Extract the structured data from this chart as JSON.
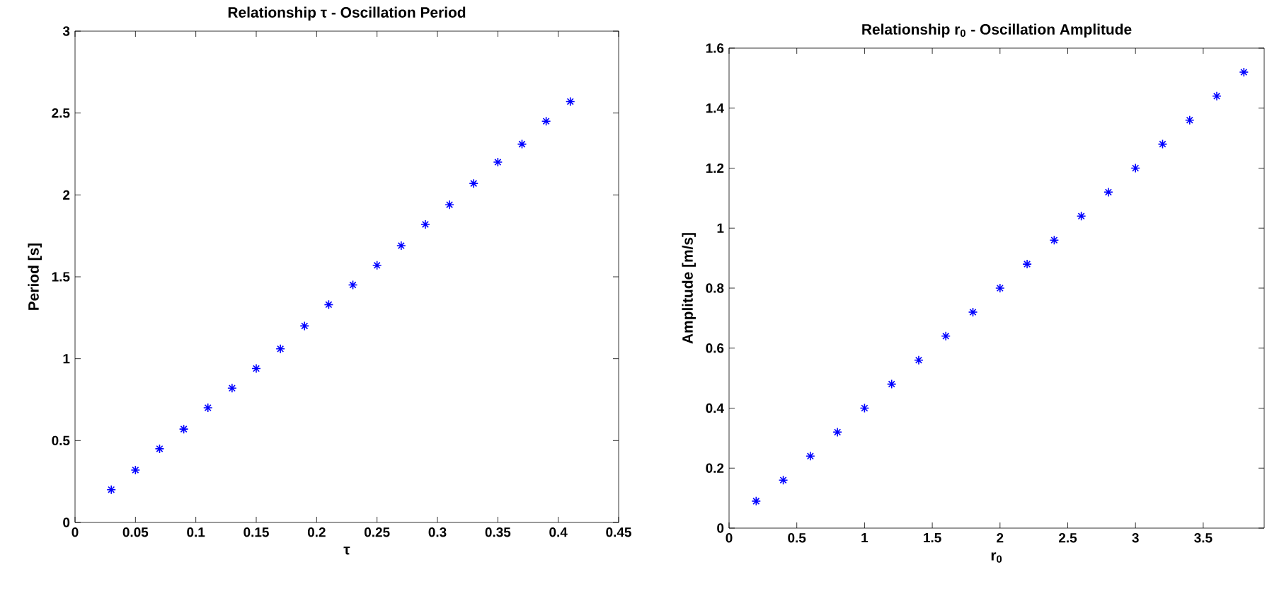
{
  "chart_data": [
    {
      "type": "scatter",
      "title": "Relationship τ - Oscillation Period",
      "xlabel": "τ",
      "ylabel": "Period [s]",
      "marker": "cross",
      "x": [
        0.03,
        0.05,
        0.07,
        0.09,
        0.11,
        0.13,
        0.15,
        0.17,
        0.19,
        0.21,
        0.23,
        0.25,
        0.27,
        0.29,
        0.31,
        0.33,
        0.35,
        0.37,
        0.39,
        0.41
      ],
      "series": [
        {
          "color": "#0000ff",
          "values": [
            0.2,
            0.32,
            0.45,
            0.57,
            0.7,
            0.82,
            0.94,
            1.06,
            1.2,
            1.33,
            1.45,
            1.57,
            1.69,
            1.82,
            1.94,
            2.07,
            2.2,
            2.31,
            2.45,
            2.57
          ]
        }
      ],
      "xlim": [
        0,
        0.45
      ],
      "xticks": [
        0,
        0.05,
        0.1,
        0.15,
        0.2,
        0.25,
        0.3,
        0.35,
        0.4,
        0.45
      ],
      "ylim": [
        0,
        3
      ],
      "yticks": [
        0,
        0.5,
        1,
        1.5,
        2,
        2.5,
        3
      ]
    },
    {
      "type": "scatter",
      "title": "Relationship r$_{0}$ - Oscillation Amplitude",
      "xlabel": "r$_{0}$",
      "ylabel": "Amplitude [m/s]",
      "marker": "cross",
      "x": [
        0.2,
        0.4,
        0.6,
        0.8,
        1.0,
        1.2,
        1.4,
        1.6,
        1.8,
        2.0,
        2.2,
        2.4,
        2.6,
        2.8,
        3.0,
        3.2,
        3.4,
        3.6,
        3.8
      ],
      "series": [
        {
          "color": "#0000ff",
          "values": [
            0.09,
            0.16,
            0.24,
            0.32,
            0.4,
            0.48,
            0.56,
            0.64,
            0.72,
            0.8,
            0.88,
            0.96,
            1.04,
            1.12,
            1.2,
            1.28,
            1.36,
            1.44,
            1.52
          ]
        }
      ],
      "xlim": [
        0,
        3.95
      ],
      "xticks": [
        0,
        0.5,
        1,
        1.5,
        2,
        2.5,
        3,
        3.5
      ],
      "ylim": [
        0,
        1.6
      ],
      "yticks": [
        0,
        0.2,
        0.4,
        0.6,
        0.8,
        1,
        1.2,
        1.4,
        1.6
      ]
    }
  ]
}
